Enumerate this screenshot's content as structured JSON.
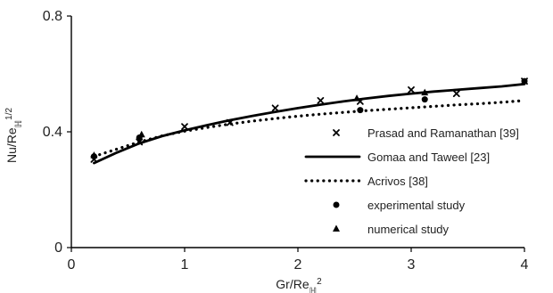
{
  "chart_data": {
    "type": "scatter",
    "title": "",
    "xlabel": {
      "main": "Gr/Re",
      "sub": "ℍ",
      "sup": "2"
    },
    "ylabel": {
      "main": "Nu/Re",
      "sub": "ℍ",
      "sup": "1/2"
    },
    "xlim": [
      0,
      4
    ],
    "ylim": [
      0,
      0.8
    ],
    "x_ticks": [
      0,
      1,
      2,
      3,
      4
    ],
    "y_ticks": [
      0,
      0.4,
      0.8
    ],
    "x_tick_labels": [
      "0",
      "1",
      "2",
      "3",
      "4"
    ],
    "y_tick_labels": [
      "0",
      "0.4",
      "0.8"
    ],
    "legend_position": "right",
    "series": [
      {
        "name": "Prasad and Ramanathan [39]",
        "kind": "marker",
        "marker": "x",
        "x": [
          0.2,
          0.6,
          1.0,
          1.4,
          1.8,
          2.2,
          2.55,
          3.0,
          3.4,
          4.0
        ],
        "y": [
          0.305,
          0.365,
          0.418,
          0.432,
          0.482,
          0.508,
          0.505,
          0.545,
          0.532,
          0.575
        ]
      },
      {
        "name": "Gomaa and Taweel [23]",
        "kind": "line",
        "style": "solid",
        "x": [
          0.2,
          0.4,
          0.6,
          0.8,
          1.0,
          1.2,
          1.4,
          1.6,
          1.8,
          2.0,
          2.2,
          2.4,
          2.6,
          2.8,
          3.0,
          3.2,
          3.4,
          3.6,
          3.8,
          4.0
        ],
        "y": [
          0.292,
          0.328,
          0.36,
          0.385,
          0.405,
          0.423,
          0.44,
          0.455,
          0.469,
          0.482,
          0.494,
          0.505,
          0.515,
          0.524,
          0.532,
          0.539,
          0.545,
          0.551,
          0.557,
          0.565
        ]
      },
      {
        "name": "Acrivos [38]",
        "kind": "line",
        "style": "dotted",
        "x": [
          0.2,
          0.4,
          0.6,
          0.8,
          1.0,
          1.2,
          1.4,
          1.6,
          1.8,
          2.0,
          2.2,
          2.4,
          2.6,
          2.8,
          3.0,
          3.2,
          3.4,
          3.6,
          3.8,
          4.0
        ],
        "y": [
          0.315,
          0.34,
          0.365,
          0.386,
          0.402,
          0.415,
          0.427,
          0.437,
          0.446,
          0.454,
          0.461,
          0.467,
          0.473,
          0.478,
          0.483,
          0.488,
          0.493,
          0.497,
          0.502,
          0.508
        ]
      },
      {
        "name": "experimental study",
        "kind": "marker",
        "marker": "circle",
        "x": [
          0.2,
          0.6,
          2.55,
          3.12,
          4.0
        ],
        "y": [
          0.315,
          0.38,
          0.475,
          0.512,
          0.575
        ]
      },
      {
        "name": "numerical study",
        "kind": "marker",
        "marker": "triangle",
        "x": [
          0.2,
          0.62,
          2.52,
          3.12
        ],
        "y": [
          0.318,
          0.39,
          0.515,
          0.535
        ]
      }
    ]
  }
}
